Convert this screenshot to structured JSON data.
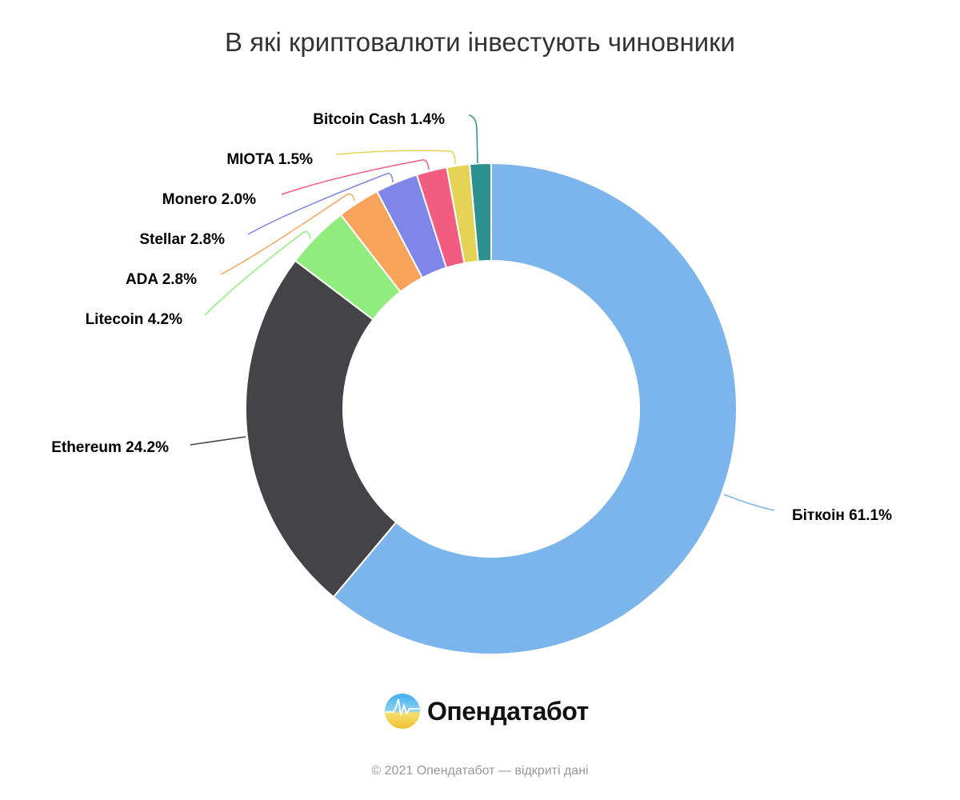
{
  "chart_data": {
    "type": "pie",
    "variant": "donut",
    "title": "В які криптовалюти інвестують чиновники",
    "slices": [
      {
        "name": "Біткоін",
        "value": 61.1,
        "label": "Біткоін 61.1%",
        "color": "#7cb5ec"
      },
      {
        "name": "Ethereum",
        "value": 24.2,
        "label": "Ethereum 24.2%",
        "color": "#434348"
      },
      {
        "name": "Litecoin",
        "value": 4.2,
        "label": "Litecoin 4.2%",
        "color": "#90ed7d"
      },
      {
        "name": "ADA",
        "value": 2.8,
        "label": "ADA 2.8%",
        "color": "#f7a35c"
      },
      {
        "name": "Stellar",
        "value": 2.8,
        "label": "Stellar 2.8%",
        "color": "#8085e9"
      },
      {
        "name": "Monero",
        "value": 2.0,
        "label": "Monero 2.0%",
        "color": "#f15c80"
      },
      {
        "name": "MIOTA",
        "value": 1.5,
        "label": "MIOTA 1.5%",
        "color": "#e4d354"
      },
      {
        "name": "Bitcoin Cash",
        "value": 1.4,
        "label": "Bitcoin Cash 1.4%",
        "color": "#2b908f"
      }
    ]
  },
  "brand": {
    "name": "Опендатабот"
  },
  "footer": "© 2021 Опендатабот — відкриті дані"
}
